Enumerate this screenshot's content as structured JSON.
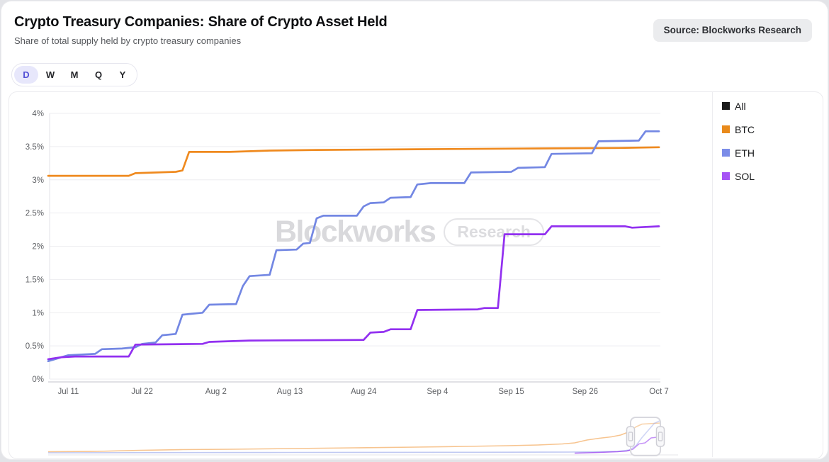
{
  "header": {
    "title": "Crypto Treasury Companies: Share of Crypto Asset Held",
    "subtitle": "Share of total supply held by crypto treasury companies",
    "source_badge": "Source: Blockworks Research"
  },
  "range_toggle": {
    "options": [
      "D",
      "W",
      "M",
      "Q",
      "Y"
    ],
    "selected": "D"
  },
  "watermark": {
    "brand": "Blockworks",
    "suffix": "Research"
  },
  "legend": [
    {
      "label": "All",
      "swatch": "#1a1a1a"
    },
    {
      "label": "BTC",
      "swatch": "#e98a1b"
    },
    {
      "label": "ETH",
      "swatch": "#7b8ce8"
    },
    {
      "label": "SOL",
      "swatch": "#a653f5"
    }
  ],
  "chart_data": {
    "type": "line",
    "title": "Crypto Treasury Companies: Share of Crypto Asset Held",
    "xlabel": "",
    "ylabel": "",
    "ylim": [
      0,
      4
    ],
    "grid": "horizontal",
    "legend_position": "right",
    "y_tick_labels": [
      "0%",
      "0.5%",
      "1%",
      "1.5%",
      "2%",
      "2.5%",
      "3%",
      "3.5%",
      "4%"
    ],
    "x_tick_labels": [
      "Jul 11",
      "Jul 22",
      "Aug 2",
      "Aug 13",
      "Aug 24",
      "Sep 4",
      "Sep 15",
      "Sep 26",
      "Oct 7"
    ],
    "x_tick_days": [
      3,
      14,
      25,
      36,
      47,
      58,
      69,
      80,
      91
    ],
    "x_range_note": "day 0 = Jul 8, day 91 = Oct 7",
    "series": [
      {
        "name": "BTC",
        "color": "#ef8a1f",
        "points": [
          [
            0,
            3.06
          ],
          [
            12,
            3.06
          ],
          [
            13,
            3.1
          ],
          [
            19,
            3.12
          ],
          [
            20,
            3.14
          ],
          [
            21,
            3.42
          ],
          [
            27,
            3.42
          ],
          [
            33,
            3.44
          ],
          [
            40,
            3.45
          ],
          [
            55,
            3.46
          ],
          [
            70,
            3.47
          ],
          [
            85,
            3.48
          ],
          [
            91,
            3.49
          ]
        ]
      },
      {
        "name": "ETH",
        "color": "#7387e3",
        "points": [
          [
            0,
            0.27
          ],
          [
            1,
            0.3
          ],
          [
            2,
            0.33
          ],
          [
            3,
            0.36
          ],
          [
            5,
            0.37
          ],
          [
            7,
            0.38
          ],
          [
            8,
            0.45
          ],
          [
            11,
            0.46
          ],
          [
            13,
            0.48
          ],
          [
            14,
            0.53
          ],
          [
            16,
            0.55
          ],
          [
            17,
            0.66
          ],
          [
            19,
            0.68
          ],
          [
            20,
            0.97
          ],
          [
            23,
            1.0
          ],
          [
            24,
            1.12
          ],
          [
            28,
            1.13
          ],
          [
            29,
            1.4
          ],
          [
            30,
            1.55
          ],
          [
            33,
            1.57
          ],
          [
            34,
            1.94
          ],
          [
            37,
            1.95
          ],
          [
            38,
            2.04
          ],
          [
            39,
            2.05
          ],
          [
            40,
            2.42
          ],
          [
            41,
            2.46
          ],
          [
            46,
            2.46
          ],
          [
            47,
            2.6
          ],
          [
            48,
            2.65
          ],
          [
            50,
            2.66
          ],
          [
            51,
            2.73
          ],
          [
            54,
            2.74
          ],
          [
            55,
            2.93
          ],
          [
            57,
            2.95
          ],
          [
            62,
            2.95
          ],
          [
            63,
            3.11
          ],
          [
            69,
            3.12
          ],
          [
            70,
            3.18
          ],
          [
            74,
            3.19
          ],
          [
            75,
            3.39
          ],
          [
            81,
            3.4
          ],
          [
            82,
            3.58
          ],
          [
            88,
            3.59
          ],
          [
            89,
            3.73
          ],
          [
            91,
            3.73
          ]
        ]
      },
      {
        "name": "SOL",
        "color": "#9230f0",
        "points": [
          [
            0,
            0.3
          ],
          [
            2,
            0.33
          ],
          [
            4,
            0.34
          ],
          [
            12,
            0.34
          ],
          [
            13,
            0.52
          ],
          [
            23,
            0.53
          ],
          [
            24,
            0.56
          ],
          [
            30,
            0.58
          ],
          [
            47,
            0.59
          ],
          [
            48,
            0.7
          ],
          [
            50,
            0.71
          ],
          [
            51,
            0.75
          ],
          [
            54,
            0.75
          ],
          [
            55,
            1.04
          ],
          [
            64,
            1.05
          ],
          [
            65,
            1.07
          ],
          [
            67,
            1.07
          ],
          [
            68,
            2.18
          ],
          [
            74,
            2.18
          ],
          [
            75,
            2.3
          ],
          [
            86,
            2.3
          ],
          [
            87,
            2.28
          ],
          [
            91,
            2.3
          ]
        ]
      }
    ]
  },
  "navigator": {
    "series": [
      {
        "name": "BTC",
        "color": "#ef8a1f",
        "points": [
          [
            0,
            0.05
          ],
          [
            0.08,
            0.06
          ],
          [
            0.15,
            0.09
          ],
          [
            0.22,
            0.11
          ],
          [
            0.3,
            0.12
          ],
          [
            0.4,
            0.14
          ],
          [
            0.5,
            0.16
          ],
          [
            0.6,
            0.18
          ],
          [
            0.68,
            0.2
          ],
          [
            0.75,
            0.22
          ],
          [
            0.8,
            0.24
          ],
          [
            0.84,
            0.27
          ],
          [
            0.86,
            0.3
          ],
          [
            0.88,
            0.38
          ],
          [
            0.9,
            0.43
          ],
          [
            0.92,
            0.47
          ],
          [
            0.935,
            0.52
          ],
          [
            0.95,
            0.62
          ],
          [
            0.96,
            0.75
          ],
          [
            0.97,
            0.83
          ],
          [
            1,
            0.86
          ]
        ]
      },
      {
        "name": "ETH",
        "color": "#7387e3",
        "points": [
          [
            0,
            0.02
          ],
          [
            0.4,
            0.03
          ],
          [
            0.7,
            0.035
          ],
          [
            0.85,
            0.04
          ],
          [
            0.9,
            0.05
          ],
          [
            0.93,
            0.06
          ],
          [
            0.95,
            0.1
          ],
          [
            0.96,
            0.22
          ],
          [
            0.97,
            0.45
          ],
          [
            0.98,
            0.65
          ],
          [
            0.99,
            0.85
          ],
          [
            1,
            0.93
          ]
        ]
      },
      {
        "name": "SOL",
        "color": "#9230f0",
        "points": [
          [
            0.86,
            0.01
          ],
          [
            0.9,
            0.03
          ],
          [
            0.93,
            0.05
          ],
          [
            0.945,
            0.07
          ],
          [
            0.955,
            0.12
          ],
          [
            0.965,
            0.27
          ],
          [
            0.975,
            0.3
          ],
          [
            0.985,
            0.44
          ],
          [
            0.995,
            0.46
          ],
          [
            1,
            0.52
          ]
        ]
      }
    ]
  }
}
